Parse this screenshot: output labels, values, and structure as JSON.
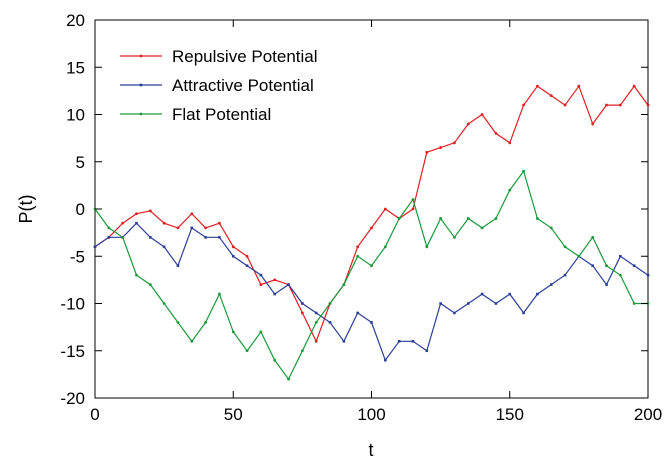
{
  "chart_data": {
    "type": "line",
    "title": "",
    "xlabel": "t",
    "ylabel": "P(t)",
    "xlim": [
      0,
      200
    ],
    "ylim": [
      -20,
      20
    ],
    "xticks": [
      0,
      50,
      100,
      150,
      200
    ],
    "yticks": [
      -20,
      -15,
      -10,
      -5,
      0,
      5,
      10,
      15,
      20
    ],
    "xtick_labels": [
      "0",
      "50",
      "100",
      "150",
      "200"
    ],
    "ytick_labels": [
      "-20",
      "-15",
      "-10",
      "-5",
      "0",
      "5",
      "10",
      "15",
      "20"
    ],
    "grid": false,
    "legend_position": "top-left",
    "series": [
      {
        "name": "Repulsive Potential",
        "color": "#e02020",
        "marker": "small-dot",
        "x": [
          0,
          5,
          10,
          15,
          20,
          25,
          30,
          35,
          40,
          45,
          50,
          55,
          60,
          65,
          70,
          75,
          80,
          85,
          90,
          95,
          100,
          105,
          110,
          115,
          120,
          125,
          130,
          135,
          140,
          145,
          150,
          155,
          160,
          165,
          170,
          175,
          180,
          185,
          190,
          195,
          200
        ],
        "y": [
          -4,
          -3,
          -1.5,
          -0.5,
          -0.2,
          -1.5,
          -2,
          -0.5,
          -2,
          -1.5,
          -4,
          -5,
          -8,
          -7.5,
          -8,
          -11,
          -14,
          -10,
          -8,
          -4,
          -2,
          0,
          -1,
          0,
          6,
          6.5,
          7,
          9,
          10,
          8,
          7,
          11,
          13,
          12,
          11,
          13,
          9,
          11,
          11,
          13,
          11
        ]
      },
      {
        "name": "Attractive Potential",
        "color": "#2a3f9a",
        "marker": "small-square",
        "x": [
          0,
          5,
          10,
          15,
          20,
          25,
          30,
          35,
          40,
          45,
          50,
          55,
          60,
          65,
          70,
          75,
          80,
          85,
          90,
          95,
          100,
          105,
          110,
          115,
          120,
          125,
          130,
          135,
          140,
          145,
          150,
          155,
          160,
          165,
          170,
          175,
          180,
          185,
          190,
          195,
          200
        ],
        "y": [
          -4,
          -3,
          -3,
          -1.5,
          -3,
          -4,
          -6,
          -2,
          -3,
          -3,
          -5,
          -6,
          -7,
          -9,
          -8,
          -10,
          -11,
          -12,
          -14,
          -11,
          -12,
          -16,
          -14,
          -14,
          -15,
          -10,
          -11,
          -10,
          -9,
          -10,
          -9,
          -11,
          -9,
          -8,
          -7,
          -5,
          -6,
          -8,
          -5,
          -6,
          -7
        ]
      },
      {
        "name": "Flat Potential",
        "color": "#1a9a3a",
        "marker": "small-dot",
        "x": [
          0,
          5,
          10,
          15,
          20,
          25,
          30,
          35,
          40,
          45,
          50,
          55,
          60,
          65,
          70,
          75,
          80,
          85,
          90,
          95,
          100,
          105,
          110,
          115,
          120,
          125,
          130,
          135,
          140,
          145,
          150,
          155,
          160,
          165,
          170,
          175,
          180,
          185,
          190,
          195,
          200
        ],
        "y": [
          0,
          -2,
          -3,
          -7,
          -8,
          -10,
          -12,
          -14,
          -12,
          -9,
          -13,
          -15,
          -13,
          -16,
          -18,
          -15,
          -12,
          -10,
          -8,
          -5,
          -6,
          -4,
          -1,
          1,
          -4,
          -1,
          -3,
          -1,
          -2,
          -1,
          2,
          4,
          -1,
          -2,
          -4,
          -5,
          -3,
          -6,
          -7,
          -10,
          -10
        ]
      }
    ]
  }
}
